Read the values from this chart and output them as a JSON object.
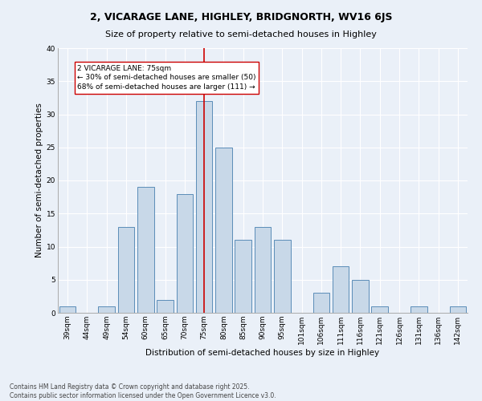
{
  "title": "2, VICARAGE LANE, HIGHLEY, BRIDGNORTH, WV16 6JS",
  "subtitle": "Size of property relative to semi-detached houses in Highley",
  "xlabel": "Distribution of semi-detached houses by size in Highley",
  "ylabel": "Number of semi-detached properties",
  "categories": [
    "39sqm",
    "44sqm",
    "49sqm",
    "54sqm",
    "60sqm",
    "65sqm",
    "70sqm",
    "75sqm",
    "80sqm",
    "85sqm",
    "90sqm",
    "95sqm",
    "101sqm",
    "106sqm",
    "111sqm",
    "116sqm",
    "121sqm",
    "126sqm",
    "131sqm",
    "136sqm",
    "142sqm"
  ],
  "values": [
    1,
    0,
    1,
    13,
    19,
    2,
    18,
    32,
    25,
    11,
    13,
    11,
    0,
    3,
    7,
    5,
    1,
    0,
    1,
    0,
    1
  ],
  "bar_color": "#c8d8e8",
  "bar_edge_color": "#5b8db8",
  "vline_x_index": 7,
  "vline_color": "#cc0000",
  "annotation_text": "2 VICARAGE LANE: 75sqm\n← 30% of semi-detached houses are smaller (50)\n68% of semi-detached houses are larger (111) →",
  "annotation_box_color": "#ffffff",
  "annotation_box_edge": "#cc0000",
  "ylim": [
    0,
    40
  ],
  "yticks": [
    0,
    5,
    10,
    15,
    20,
    25,
    30,
    35,
    40
  ],
  "bg_color": "#eaf0f8",
  "footer": "Contains HM Land Registry data © Crown copyright and database right 2025.\nContains public sector information licensed under the Open Government Licence v3.0.",
  "title_fontsize": 9,
  "subtitle_fontsize": 8,
  "ylabel_fontsize": 7.5,
  "xlabel_fontsize": 7.5,
  "tick_fontsize": 6.5,
  "annotation_fontsize": 6.5,
  "footer_fontsize": 5.5
}
